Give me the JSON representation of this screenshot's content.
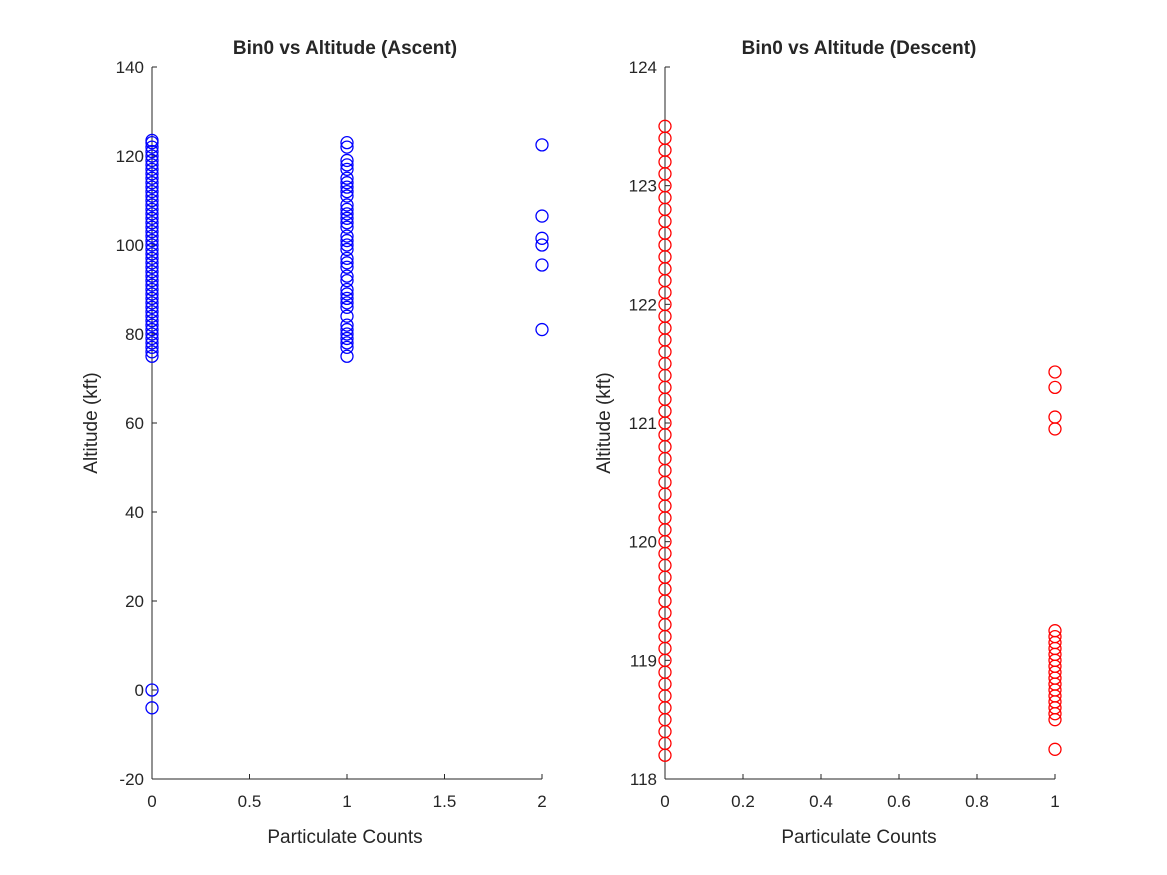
{
  "chart_data": [
    {
      "type": "scatter",
      "title": "Bin0 vs Altitude (Ascent)",
      "xlabel": "Particulate Counts",
      "ylabel": "Altitude (kft)",
      "xlim": [
        0,
        2
      ],
      "ylim": [
        -20,
        140
      ],
      "xticks": [
        "0",
        "0.5",
        "1",
        "1.5",
        "2"
      ],
      "yticks": [
        "-20",
        "0",
        "20",
        "40",
        "60",
        "80",
        "100",
        "120",
        "140"
      ],
      "grid": false,
      "marker": "circle-open",
      "color": "#0000ff",
      "series": [
        {
          "points": [
            [
              0,
              -4
            ],
            [
              0,
              0
            ],
            [
              0,
              75
            ],
            [
              0,
              76
            ],
            [
              0,
              77
            ],
            [
              0,
              78
            ],
            [
              0,
              79
            ],
            [
              0,
              80
            ],
            [
              0,
              81
            ],
            [
              0,
              82
            ],
            [
              0,
              83
            ],
            [
              0,
              84
            ],
            [
              0,
              85
            ],
            [
              0,
              86
            ],
            [
              0,
              87
            ],
            [
              0,
              88
            ],
            [
              0,
              89
            ],
            [
              0,
              90
            ],
            [
              0,
              91
            ],
            [
              0,
              92
            ],
            [
              0,
              93
            ],
            [
              0,
              94
            ],
            [
              0,
              95
            ],
            [
              0,
              96
            ],
            [
              0,
              97
            ],
            [
              0,
              98
            ],
            [
              0,
              99
            ],
            [
              0,
              100
            ],
            [
              0,
              101
            ],
            [
              0,
              102
            ],
            [
              0,
              103
            ],
            [
              0,
              104
            ],
            [
              0,
              105
            ],
            [
              0,
              106
            ],
            [
              0,
              107
            ],
            [
              0,
              108
            ],
            [
              0,
              109
            ],
            [
              0,
              110
            ],
            [
              0,
              111
            ],
            [
              0,
              112
            ],
            [
              0,
              113
            ],
            [
              0,
              114
            ],
            [
              0,
              115
            ],
            [
              0,
              116
            ],
            [
              0,
              117
            ],
            [
              0,
              118
            ],
            [
              0,
              119
            ],
            [
              0,
              120
            ],
            [
              0,
              121
            ],
            [
              0,
              122
            ],
            [
              0,
              123
            ],
            [
              0,
              123.5
            ],
            [
              1,
              75
            ],
            [
              1,
              77
            ],
            [
              1,
              78
            ],
            [
              1,
              79
            ],
            [
              1,
              80
            ],
            [
              1,
              81
            ],
            [
              1,
              82
            ],
            [
              1,
              84
            ],
            [
              1,
              86
            ],
            [
              1,
              87
            ],
            [
              1,
              88
            ],
            [
              1,
              89
            ],
            [
              1,
              90
            ],
            [
              1,
              92
            ],
            [
              1,
              93
            ],
            [
              1,
              95
            ],
            [
              1,
              96
            ],
            [
              1,
              97
            ],
            [
              1,
              99
            ],
            [
              1,
              100
            ],
            [
              1,
              101
            ],
            [
              1,
              102
            ],
            [
              1,
              104
            ],
            [
              1,
              105
            ],
            [
              1,
              106
            ],
            [
              1,
              107
            ],
            [
              1,
              108
            ],
            [
              1,
              109
            ],
            [
              1,
              111
            ],
            [
              1,
              112
            ],
            [
              1,
              113
            ],
            [
              1,
              114
            ],
            [
              1,
              115
            ],
            [
              1,
              117
            ],
            [
              1,
              118
            ],
            [
              1,
              119
            ],
            [
              1,
              122
            ],
            [
              1,
              123
            ],
            [
              2,
              81
            ],
            [
              2,
              95.5
            ],
            [
              2,
              100
            ],
            [
              2,
              101.5
            ],
            [
              2,
              106.5
            ],
            [
              2,
              122.5
            ]
          ]
        }
      ]
    },
    {
      "type": "scatter",
      "title": "Bin0 vs Altitude (Descent)",
      "xlabel": "Particulate Counts",
      "ylabel": "Altitude (kft)",
      "xlim": [
        0,
        1
      ],
      "ylim": [
        118,
        124
      ],
      "xticks": [
        "0",
        "0.2",
        "0.4",
        "0.6",
        "0.8",
        "1"
      ],
      "yticks": [
        "118",
        "119",
        "120",
        "121",
        "122",
        "123",
        "124"
      ],
      "grid": false,
      "marker": "circle-open",
      "color": "#ff0000",
      "series": [
        {
          "points": [
            [
              0,
              118.2
            ],
            [
              0,
              118.3
            ],
            [
              0,
              118.4
            ],
            [
              0,
              118.5
            ],
            [
              0,
              118.6
            ],
            [
              0,
              118.7
            ],
            [
              0,
              118.8
            ],
            [
              0,
              118.9
            ],
            [
              0,
              119.0
            ],
            [
              0,
              119.1
            ],
            [
              0,
              119.2
            ],
            [
              0,
              119.3
            ],
            [
              0,
              119.4
            ],
            [
              0,
              119.5
            ],
            [
              0,
              119.6
            ],
            [
              0,
              119.7
            ],
            [
              0,
              119.8
            ],
            [
              0,
              119.9
            ],
            [
              0,
              120.0
            ],
            [
              0,
              120.1
            ],
            [
              0,
              120.2
            ],
            [
              0,
              120.3
            ],
            [
              0,
              120.4
            ],
            [
              0,
              120.5
            ],
            [
              0,
              120.6
            ],
            [
              0,
              120.7
            ],
            [
              0,
              120.8
            ],
            [
              0,
              120.9
            ],
            [
              0,
              121.0
            ],
            [
              0,
              121.1
            ],
            [
              0,
              121.2
            ],
            [
              0,
              121.3
            ],
            [
              0,
              121.4
            ],
            [
              0,
              121.5
            ],
            [
              0,
              121.6
            ],
            [
              0,
              121.7
            ],
            [
              0,
              121.8
            ],
            [
              0,
              121.9
            ],
            [
              0,
              122.0
            ],
            [
              0,
              122.1
            ],
            [
              0,
              122.2
            ],
            [
              0,
              122.3
            ],
            [
              0,
              122.4
            ],
            [
              0,
              122.5
            ],
            [
              0,
              122.6
            ],
            [
              0,
              122.7
            ],
            [
              0,
              122.8
            ],
            [
              0,
              122.9
            ],
            [
              0,
              123.0
            ],
            [
              0,
              123.1
            ],
            [
              0,
              123.2
            ],
            [
              0,
              123.3
            ],
            [
              0,
              123.4
            ],
            [
              0,
              123.5
            ],
            [
              1,
              118.25
            ],
            [
              1,
              118.5
            ],
            [
              1,
              118.55
            ],
            [
              1,
              118.6
            ],
            [
              1,
              118.65
            ],
            [
              1,
              118.7
            ],
            [
              1,
              118.75
            ],
            [
              1,
              118.8
            ],
            [
              1,
              118.85
            ],
            [
              1,
              118.9
            ],
            [
              1,
              118.95
            ],
            [
              1,
              119.0
            ],
            [
              1,
              119.05
            ],
            [
              1,
              119.1
            ],
            [
              1,
              119.15
            ],
            [
              1,
              119.2
            ],
            [
              1,
              119.25
            ],
            [
              1,
              120.95
            ],
            [
              1,
              121.05
            ],
            [
              1,
              121.3
            ],
            [
              1,
              121.43
            ]
          ]
        }
      ]
    }
  ]
}
